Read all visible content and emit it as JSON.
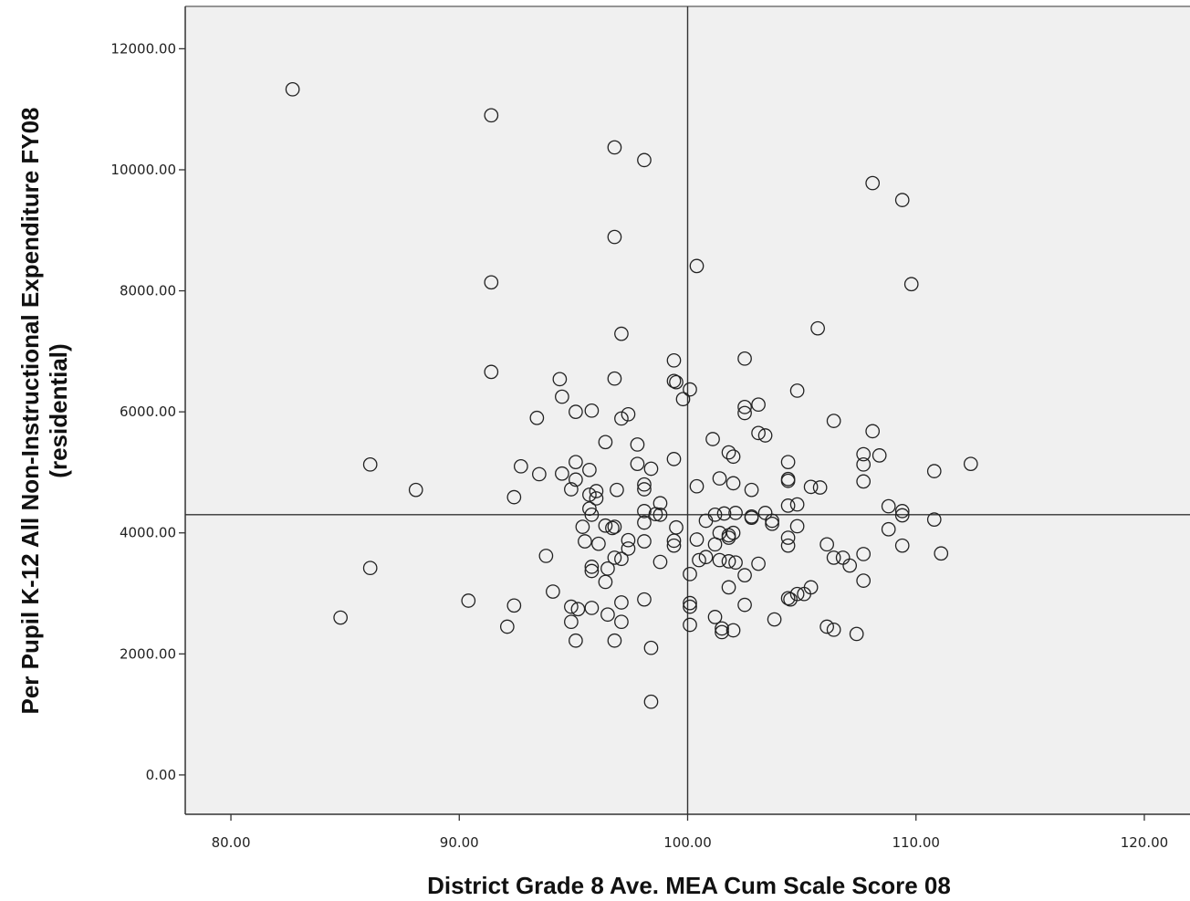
{
  "chart_data": {
    "type": "scatter",
    "xlabel": "District Grade 8 Ave. MEA Cum Scale Score 08",
    "ylabel_lines": [
      "Per Pupil K-12 All Non-Instructional Expenditure FY08",
      "(residential)"
    ],
    "xlim": [
      78,
      122
    ],
    "ylim": [
      -650,
      12700
    ],
    "x_ticks": [
      80,
      90,
      100,
      110,
      120
    ],
    "x_tick_labels": [
      "80.00",
      "90.00",
      "100.00",
      "110.00",
      "120.00"
    ],
    "y_ticks": [
      0,
      2000,
      4000,
      6000,
      8000,
      10000,
      12000
    ],
    "y_tick_labels": [
      "0.00",
      "2000.00",
      "4000.00",
      "6000.00",
      "8000.00",
      "10000.00",
      "12000.00"
    ],
    "reference_lines": {
      "x": 100,
      "y": 4300
    },
    "plot_background": "#f0f0f0",
    "marker": "open-circle",
    "grid": false,
    "points": [
      [
        82.7,
        11330
      ],
      [
        84.8,
        2600
      ],
      [
        86.1,
        5130
      ],
      [
        86.1,
        3420
      ],
      [
        88.1,
        4710
      ],
      [
        90.4,
        2880
      ],
      [
        91.4,
        10900
      ],
      [
        91.4,
        8140
      ],
      [
        91.4,
        6660
      ],
      [
        92.1,
        2450
      ],
      [
        92.4,
        4590
      ],
      [
        92.4,
        2800
      ],
      [
        92.7,
        5100
      ],
      [
        93.4,
        5900
      ],
      [
        93.5,
        4970
      ],
      [
        93.8,
        3620
      ],
      [
        94.1,
        3030
      ],
      [
        94.4,
        6540
      ],
      [
        94.5,
        6250
      ],
      [
        94.5,
        4980
      ],
      [
        94.9,
        2780
      ],
      [
        94.9,
        2530
      ],
      [
        94.9,
        4720
      ],
      [
        95.1,
        6000
      ],
      [
        95.1,
        5170
      ],
      [
        95.1,
        4880
      ],
      [
        95.1,
        2220
      ],
      [
        95.2,
        2740
      ],
      [
        95.4,
        4100
      ],
      [
        95.5,
        3860
      ],
      [
        95.7,
        5040
      ],
      [
        95.7,
        4630
      ],
      [
        95.7,
        4400
      ],
      [
        95.8,
        6020
      ],
      [
        95.8,
        2760
      ],
      [
        95.8,
        4300
      ],
      [
        95.8,
        3440
      ],
      [
        95.8,
        3370
      ],
      [
        96.0,
        4690
      ],
      [
        96.0,
        4570
      ],
      [
        96.1,
        3820
      ],
      [
        96.4,
        5500
      ],
      [
        96.4,
        4120
      ],
      [
        96.4,
        3190
      ],
      [
        96.5,
        3410
      ],
      [
        96.5,
        2650
      ],
      [
        96.7,
        4080
      ],
      [
        96.8,
        10370
      ],
      [
        96.8,
        8890
      ],
      [
        96.8,
        6550
      ],
      [
        96.8,
        4100
      ],
      [
        96.8,
        3590
      ],
      [
        96.8,
        2220
      ],
      [
        96.9,
        4710
      ],
      [
        97.1,
        7290
      ],
      [
        97.1,
        5890
      ],
      [
        97.1,
        2530
      ],
      [
        97.1,
        2850
      ],
      [
        97.1,
        3570
      ],
      [
        97.4,
        5960
      ],
      [
        97.4,
        3880
      ],
      [
        97.4,
        3740
      ],
      [
        97.8,
        5460
      ],
      [
        97.8,
        5140
      ],
      [
        98.1,
        10160
      ],
      [
        98.1,
        4800
      ],
      [
        98.1,
        4720
      ],
      [
        98.1,
        4360
      ],
      [
        98.1,
        4170
      ],
      [
        98.1,
        3860
      ],
      [
        98.1,
        2900
      ],
      [
        98.4,
        5060
      ],
      [
        98.4,
        2100
      ],
      [
        98.4,
        1210
      ],
      [
        98.6,
        4310
      ],
      [
        98.8,
        4490
      ],
      [
        98.8,
        4300
      ],
      [
        98.8,
        3520
      ],
      [
        99.4,
        6850
      ],
      [
        99.4,
        6510
      ],
      [
        99.4,
        5220
      ],
      [
        99.4,
        3870
      ],
      [
        99.4,
        3790
      ],
      [
        99.5,
        6490
      ],
      [
        99.5,
        4090
      ],
      [
        99.8,
        6210
      ],
      [
        100.1,
        6370
      ],
      [
        100.1,
        3320
      ],
      [
        100.1,
        2840
      ],
      [
        100.1,
        2780
      ],
      [
        100.1,
        2480
      ],
      [
        100.4,
        8410
      ],
      [
        100.4,
        4770
      ],
      [
        100.4,
        3890
      ],
      [
        100.5,
        3550
      ],
      [
        100.8,
        4200
      ],
      [
        100.8,
        3600
      ],
      [
        101.1,
        5550
      ],
      [
        101.2,
        4300
      ],
      [
        101.2,
        2610
      ],
      [
        101.2,
        3810
      ],
      [
        101.4,
        4900
      ],
      [
        101.4,
        4000
      ],
      [
        101.4,
        3550
      ],
      [
        101.5,
        2420
      ],
      [
        101.5,
        2360
      ],
      [
        101.6,
        4320
      ],
      [
        101.8,
        5330
      ],
      [
        101.8,
        3960
      ],
      [
        101.8,
        3920
      ],
      [
        101.8,
        3530
      ],
      [
        101.8,
        3100
      ],
      [
        102.0,
        5260
      ],
      [
        102.0,
        4820
      ],
      [
        102.0,
        4000
      ],
      [
        102.0,
        2390
      ],
      [
        102.1,
        3510
      ],
      [
        102.1,
        4330
      ],
      [
        102.5,
        6880
      ],
      [
        102.5,
        6080
      ],
      [
        102.5,
        5980
      ],
      [
        102.5,
        3300
      ],
      [
        102.5,
        2810
      ],
      [
        102.8,
        4710
      ],
      [
        102.8,
        4270
      ],
      [
        102.8,
        4250
      ],
      [
        103.1,
        6120
      ],
      [
        103.1,
        5650
      ],
      [
        103.1,
        3490
      ],
      [
        103.4,
        5610
      ],
      [
        103.4,
        4330
      ],
      [
        103.7,
        4200
      ],
      [
        103.7,
        4150
      ],
      [
        103.8,
        2570
      ],
      [
        104.4,
        5170
      ],
      [
        104.4,
        4890
      ],
      [
        104.4,
        4860
      ],
      [
        104.4,
        4450
      ],
      [
        104.4,
        3920
      ],
      [
        104.4,
        3790
      ],
      [
        104.4,
        2920
      ],
      [
        104.5,
        2900
      ],
      [
        104.8,
        6350
      ],
      [
        104.8,
        4470
      ],
      [
        104.8,
        4110
      ],
      [
        104.8,
        2990
      ],
      [
        105.1,
        2990
      ],
      [
        105.4,
        3100
      ],
      [
        105.4,
        4760
      ],
      [
        105.7,
        7380
      ],
      [
        105.8,
        4750
      ],
      [
        106.1,
        3810
      ],
      [
        106.1,
        2450
      ],
      [
        106.4,
        5850
      ],
      [
        106.4,
        3590
      ],
      [
        106.4,
        2400
      ],
      [
        106.8,
        3590
      ],
      [
        107.1,
        3460
      ],
      [
        107.4,
        2330
      ],
      [
        107.7,
        5300
      ],
      [
        107.7,
        5130
      ],
      [
        107.7,
        4850
      ],
      [
        107.7,
        3650
      ],
      [
        107.7,
        3210
      ],
      [
        108.1,
        9780
      ],
      [
        108.1,
        5680
      ],
      [
        108.4,
        5280
      ],
      [
        108.8,
        4440
      ],
      [
        108.8,
        4060
      ],
      [
        109.4,
        9500
      ],
      [
        109.4,
        4360
      ],
      [
        109.4,
        4290
      ],
      [
        109.4,
        3790
      ],
      [
        109.8,
        8110
      ],
      [
        110.8,
        4220
      ],
      [
        110.8,
        5020
      ],
      [
        111.1,
        3660
      ],
      [
        112.4,
        5140
      ]
    ]
  }
}
